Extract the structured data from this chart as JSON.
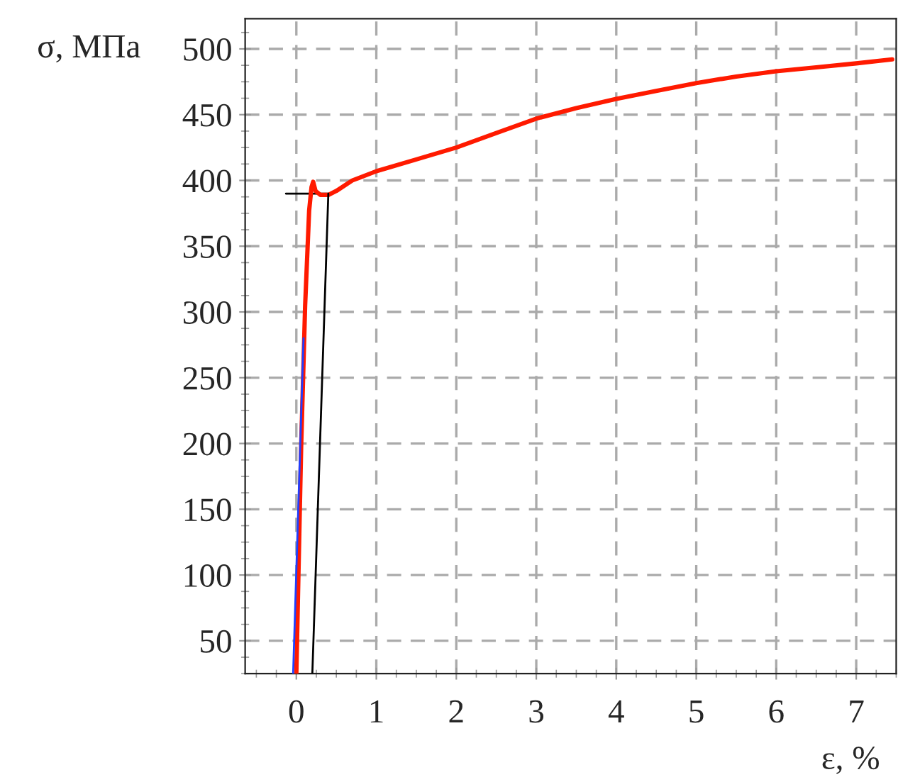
{
  "chart_data": {
    "type": "line",
    "xlabel": "ε, %",
    "ylabel": "σ, МПа",
    "xlim": [
      -0.64,
      7.5
    ],
    "ylim": [
      25,
      523
    ],
    "xticks": [
      0,
      1,
      2,
      3,
      4,
      5,
      6,
      7
    ],
    "yticks": [
      50,
      100,
      150,
      200,
      250,
      300,
      350,
      400,
      450,
      500
    ],
    "grid": true,
    "line_style": "solid",
    "marker": "none",
    "series": [
      {
        "color": "#000000",
        "x": [
          0.2,
          0.4
        ],
        "values": [
          25,
          390
        ]
      },
      {
        "color": "#000000",
        "x": [
          -0.13,
          0.4
        ],
        "values": [
          390,
          390
        ]
      },
      {
        "color": "#1f3fff",
        "x": [
          -0.04,
          0.09
        ],
        "values": [
          25,
          280
        ]
      },
      {
        "color": "#ff1a00",
        "x": [
          0.0,
          0.06,
          0.11,
          0.16,
          0.19,
          0.21,
          0.24,
          0.3,
          0.4,
          0.5,
          0.7,
          1.0,
          1.5,
          2,
          2.5,
          3,
          3.5,
          4,
          4.5,
          5,
          5.5,
          6,
          6.5,
          7,
          7.45
        ],
        "values": [
          25,
          197,
          305,
          377,
          395,
          399,
          392,
          389,
          389,
          392,
          400,
          407,
          416,
          425,
          436,
          447,
          455,
          462,
          468,
          474,
          479,
          483,
          486,
          489,
          492
        ]
      }
    ]
  }
}
